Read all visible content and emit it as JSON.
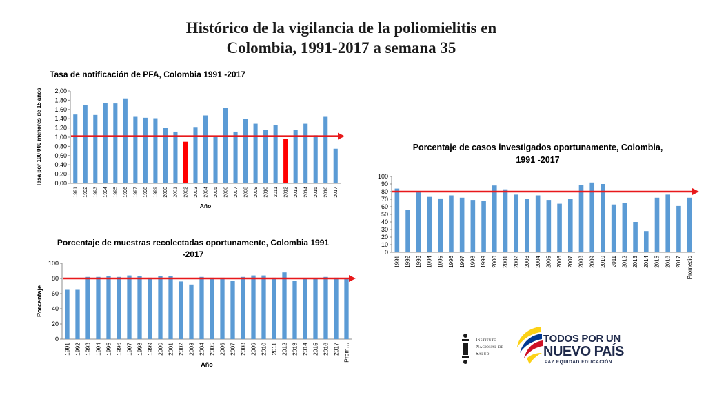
{
  "slide": {
    "title_line1": "Histórico de la vigilancia de la poliomielitis en",
    "title_line2": "Colombia, 1991-2017 a semana 35"
  },
  "chart_data": [
    {
      "id": "pfa",
      "type": "bar",
      "title": [
        "Tasa de notificación  de PFA, Colombia 1991 -2017"
      ],
      "ylabel": [
        "Tasa por 100 000 menores de 15 años"
      ],
      "xlabel": "Año",
      "categories": [
        "1991",
        "1992",
        "1993",
        "1994",
        "1995",
        "1996",
        "1997",
        "1998",
        "1999",
        "2000",
        "2001",
        "2002",
        "2003",
        "2004",
        "2005",
        "2006",
        "2007",
        "2008",
        "2009",
        "2010",
        "2011",
        "2012",
        "2013",
        "2014",
        "2015",
        "2016",
        "2017"
      ],
      "values": [
        1.49,
        1.7,
        1.48,
        1.74,
        1.73,
        1.84,
        1.44,
        1.42,
        1.41,
        1.2,
        1.12,
        0.9,
        1.22,
        1.47,
        1.03,
        1.64,
        1.12,
        1.4,
        1.29,
        1.15,
        1.26,
        0.96,
        1.15,
        1.29,
        1.04,
        1.44,
        0.75
      ],
      "ylim": [
        0,
        2
      ],
      "ytick_step": 0.2,
      "ytick_labels": [
        "0,00",
        "0,20",
        "0,40",
        "0,60",
        "0,80",
        "1,00",
        "1,20",
        "1,40",
        "1,60",
        "1,80",
        "2,00"
      ],
      "bar_color": "#5b9bd5",
      "highlight_categories": [
        "2002",
        "2012"
      ],
      "highlight_color": "#ff0000",
      "reference_line": 1.02,
      "reference_color": "#e8191b",
      "grid": false,
      "legend": "none"
    },
    {
      "id": "casos",
      "type": "bar",
      "title": [
        "Porcentaje de casos investigados oportunamente, Colombia,",
        "1991 -2017"
      ],
      "ylabel": [],
      "xlabel": "",
      "categories": [
        "1991",
        "1992",
        "1993",
        "1994",
        "1995",
        "1996",
        "1997",
        "1998",
        "1999",
        "2000",
        "2001",
        "2002",
        "2003",
        "2004",
        "2005",
        "2006",
        "2007",
        "2008",
        "2009",
        "2010",
        "2011",
        "2012",
        "2013",
        "2014",
        "2015",
        "2016",
        "2017",
        "Promedio"
      ],
      "values": [
        84,
        56,
        79,
        73,
        71,
        75,
        72,
        69,
        68,
        88,
        83,
        76,
        70,
        75,
        69,
        64,
        70,
        89,
        92,
        90,
        63,
        65,
        40,
        28,
        72,
        76,
        61,
        72
      ],
      "ylim": [
        0,
        100
      ],
      "ytick_step": 10,
      "ytick_labels": [
        "0",
        "10",
        "20",
        "30",
        "40",
        "50",
        "60",
        "70",
        "80",
        "90",
        "100"
      ],
      "bar_color": "#5b9bd5",
      "highlight_categories": [],
      "highlight_color": "#ff0000",
      "reference_line": 80,
      "reference_color": "#e8191b",
      "grid": false,
      "legend": "none"
    },
    {
      "id": "muestras",
      "type": "bar",
      "title": [
        "Porcentaje de muestras recolectadas oportunamente, Colombia 1991",
        "-2017"
      ],
      "ylabel": [
        "Porcentaje"
      ],
      "xlabel": "Año",
      "categories": [
        "1991",
        "1992",
        "1993",
        "1994",
        "1995",
        "1996",
        "1997",
        "1998",
        "1999",
        "2000",
        "2001",
        "2002",
        "2003",
        "2004",
        "2005",
        "2006",
        "2007",
        "2008",
        "2009",
        "2010",
        "2011",
        "2012",
        "2013",
        "2014",
        "2015",
        "2016",
        "2017",
        "Prom…"
      ],
      "values": [
        65,
        65,
        82,
        82,
        83,
        82,
        84,
        83,
        81,
        83,
        83,
        76,
        72,
        82,
        81,
        81,
        77,
        82,
        84,
        84,
        81,
        88,
        77,
        80,
        80,
        82,
        81,
        80
      ],
      "ylim": [
        0,
        100
      ],
      "ytick_step": 20,
      "ytick_labels": [
        "0",
        "20",
        "40",
        "60",
        "80",
        "100"
      ],
      "bar_color": "#5b9bd5",
      "highlight_categories": [],
      "highlight_color": "#ff0000",
      "reference_line": 80,
      "reference_color": "#e8191b",
      "grid": false,
      "legend": "none"
    }
  ],
  "logos": {
    "ins": {
      "icon": "instituto-nacional-salud-emblem-icon",
      "line1": "Instituto",
      "line2": "Nacional de",
      "line3": "Salud"
    },
    "tpnp": {
      "icon": "todos-por-un-nuevo-pais-swoosh-icon",
      "line1": "TODOS POR UN",
      "line2": "NUEVO PAÍS",
      "slogan": "PAZ  EQUIDAD  EDUCACIÓN",
      "colors": [
        "#fcd116",
        "#003893",
        "#ce1126"
      ]
    }
  }
}
